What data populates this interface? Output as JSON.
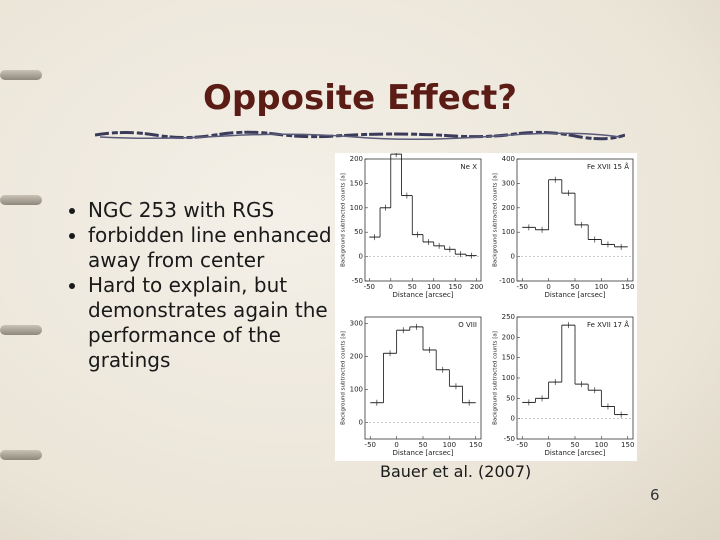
{
  "slide": {
    "title": "Opposite Effect?",
    "bullets": [
      "NGC 253 with RGS",
      "forbidden line enhanced away from center",
      "Hard to explain, but demonstrates again the performance of the gratings"
    ],
    "figure": {
      "panels": [
        {
          "type": "histogram",
          "label": "Ne X",
          "xlabel": "Distance [arcsec]",
          "ylabel": "Background subtracted counts [a]",
          "bins": [
            -50,
            -25,
            0,
            25,
            50,
            75,
            100,
            125,
            150,
            175,
            200
          ],
          "counts": [
            40,
            100,
            210,
            125,
            45,
            30,
            22,
            15,
            5,
            2
          ],
          "xlim": [
            -60,
            210
          ],
          "xticks": [
            -50,
            0,
            50,
            100,
            150,
            200
          ],
          "ylim": [
            -50,
            200
          ],
          "yticks": [
            -50,
            0,
            50,
            100,
            150,
            200
          ]
        },
        {
          "type": "histogram",
          "label": "Fe XVII 15 Å",
          "xlabel": "Distance [arcsec]",
          "ylabel": "Background subtracted counts [a]",
          "bins": [
            -50,
            -25,
            0,
            25,
            50,
            75,
            100,
            125,
            150
          ],
          "counts": [
            120,
            110,
            315,
            260,
            130,
            70,
            50,
            40
          ],
          "xlim": [
            -60,
            160
          ],
          "xticks": [
            -50,
            0,
            50,
            100,
            150
          ],
          "ylim": [
            -100,
            400
          ],
          "yticks": [
            -100,
            0,
            100,
            200,
            300,
            400
          ]
        },
        {
          "type": "histogram",
          "label": "O VIII",
          "xlabel": "Distance [arcsec]",
          "ylabel": "Background subtracted counts [a]",
          "bins": [
            -50,
            -25,
            0,
            25,
            50,
            75,
            100,
            125,
            150
          ],
          "counts": [
            60,
            210,
            280,
            290,
            220,
            160,
            110,
            60
          ],
          "xlim": [
            -60,
            160
          ],
          "xticks": [
            -50,
            0,
            50,
            100,
            150
          ],
          "ylim": [
            -50,
            320
          ],
          "yticks": [
            0,
            100,
            200,
            300
          ]
        },
        {
          "type": "histogram",
          "label": "Fe XVII 17 Å",
          "xlabel": "Distance [arcsec]",
          "ylabel": "Background subtracted counts [a]",
          "bins": [
            -50,
            -25,
            0,
            25,
            50,
            75,
            100,
            125,
            150
          ],
          "counts": [
            40,
            50,
            90,
            230,
            85,
            70,
            30,
            10
          ],
          "xlim": [
            -60,
            160
          ],
          "xticks": [
            -50,
            0,
            50,
            100,
            150
          ],
          "ylim": [
            -50,
            250
          ],
          "yticks": [
            -50,
            0,
            50,
            100,
            150,
            200,
            250
          ]
        }
      ]
    },
    "caption": "Bauer et al. (2007)",
    "page_number": "6"
  }
}
